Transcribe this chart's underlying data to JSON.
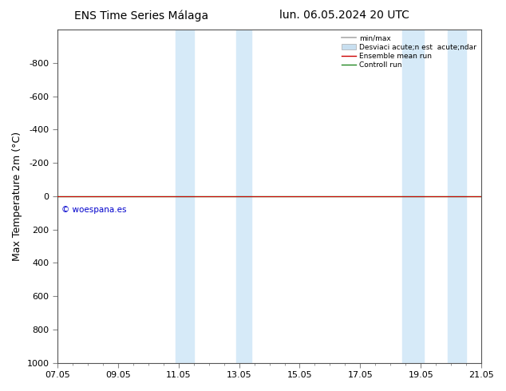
{
  "title_left": "ENS Time Series Málaga",
  "title_right": "lun. 06.05.2024 20 UTC",
  "ylabel": "Max Temperature 2m (°C)",
  "xtick_labels": [
    "07.05",
    "09.05",
    "11.05",
    "13.05",
    "15.05",
    "17.05",
    "19.05",
    "21.05"
  ],
  "xtick_positions": [
    0,
    2,
    4,
    6,
    8,
    10,
    12,
    14
  ],
  "ylim": [
    -1000,
    1000
  ],
  "ytick_positions": [
    -800,
    -600,
    -400,
    -200,
    0,
    200,
    400,
    600,
    800,
    1000
  ],
  "ytick_labels": [
    "-800",
    "-600",
    "-400",
    "-200",
    "0",
    "200",
    "400",
    "600",
    "800",
    "1000"
  ],
  "shaded_bands": [
    [
      3.9,
      4.5
    ],
    [
      5.9,
      6.4
    ],
    [
      11.4,
      12.1
    ],
    [
      12.9,
      13.5
    ]
  ],
  "green_line_y": 0,
  "red_line_y": 0,
  "watermark": "© woespana.es",
  "watermark_color": "#0000cc",
  "background_color": "#ffffff",
  "plot_bg_color": "#ffffff",
  "shaded_color": "#d6eaf8",
  "title_fontsize": 10,
  "axis_label_fontsize": 9,
  "tick_fontsize": 8,
  "legend_label_min_max": "min/max",
  "legend_label_std": "Desviaci acute;n est  acute;ndar",
  "legend_label_ensemble": "Ensemble mean run",
  "legend_label_control": "Controll run",
  "legend_color_min_max": "#aaaaaa",
  "legend_color_std": "#c8dff0",
  "legend_color_ensemble": "#cc0000",
  "legend_color_control": "#228822"
}
